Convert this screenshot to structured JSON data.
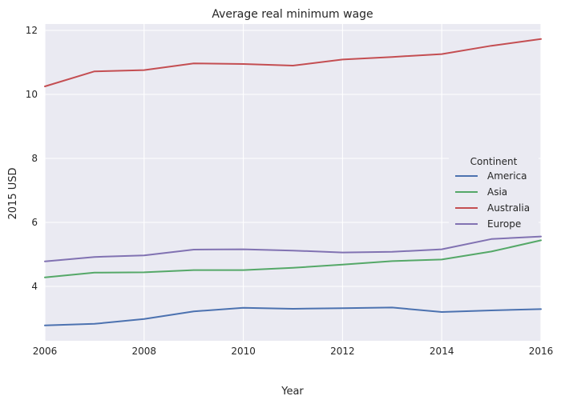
{
  "chart_data": {
    "type": "line",
    "title": "Average real minimum wage",
    "xlabel": "Year",
    "ylabel": "2015 USD",
    "xlim": [
      2006,
      2016
    ],
    "ylim": [
      2.3,
      12.2
    ],
    "x": [
      2006,
      2007,
      2008,
      2009,
      2010,
      2011,
      2012,
      2013,
      2014,
      2015,
      2016
    ],
    "x_ticks": [
      2006,
      2008,
      2010,
      2012,
      2014,
      2016
    ],
    "y_ticks": [
      4,
      6,
      8,
      10,
      12
    ],
    "grid": true,
    "legend": {
      "title": "Continent",
      "placement": "center-right"
    },
    "series": [
      {
        "name": "America",
        "color": "#4c72b0",
        "values": [
          2.78,
          2.83,
          2.98,
          3.22,
          3.33,
          3.3,
          3.32,
          3.34,
          3.2,
          3.25,
          3.29
        ]
      },
      {
        "name": "Asia",
        "color": "#55a868",
        "values": [
          4.28,
          4.43,
          4.44,
          4.51,
          4.51,
          4.58,
          4.68,
          4.79,
          4.84,
          5.09,
          5.44
        ]
      },
      {
        "name": "Australia",
        "color": "#c44e52",
        "values": [
          10.25,
          10.72,
          10.76,
          10.97,
          10.95,
          10.9,
          11.09,
          11.17,
          11.26,
          11.52,
          11.73
        ]
      },
      {
        "name": "Europe",
        "color": "#8172b2",
        "values": [
          4.78,
          4.92,
          4.97,
          5.15,
          5.16,
          5.12,
          5.06,
          5.08,
          5.16,
          5.48,
          5.56
        ]
      }
    ]
  }
}
